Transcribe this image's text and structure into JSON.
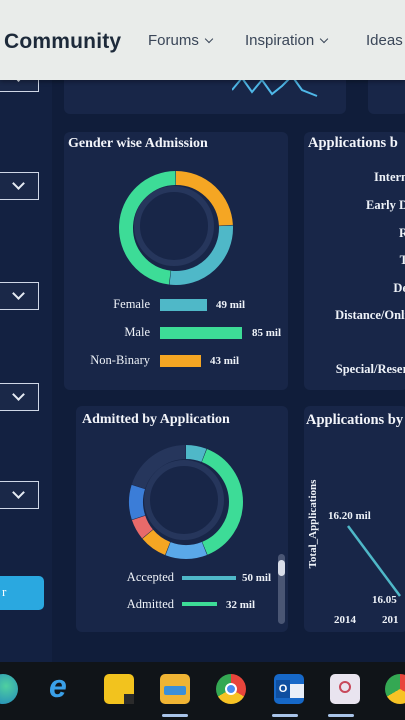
{
  "nav": {
    "brand": "Community",
    "items": [
      {
        "label": "Forums"
      },
      {
        "label": "Inspiration"
      },
      {
        "label": "Ideas"
      }
    ]
  },
  "panels": {
    "gender": {
      "title": "Gender wise Admission",
      "colors": [
        "#f5a623",
        "#4fb8c8",
        "#3ddc97"
      ],
      "donut_values": [
        43,
        49,
        85
      ],
      "bars": [
        {
          "label": "Female",
          "value": 49,
          "value_label": "49 mil",
          "color": "#4fb8c8"
        },
        {
          "label": "Male",
          "value": 85,
          "value_label": "85 mil",
          "color": "#3ddc97"
        },
        {
          "label": "Non-Binary",
          "value": 43,
          "value_label": "43 mil",
          "color": "#f5a623"
        }
      ]
    },
    "applications_by_type": {
      "title": "Applications b",
      "rows": [
        "Intern",
        "Early D",
        "R",
        "T",
        "De",
        "Distance/Onli",
        "Special/Reser"
      ]
    },
    "admitted": {
      "title": "Admitted by Application",
      "bars": [
        {
          "label": "Accepted",
          "value": 50,
          "value_label": "50 mil",
          "color": "#4fb8c8"
        },
        {
          "label": "Admitted",
          "value": 32,
          "value_label": "32 mil",
          "color": "#3ddc97"
        }
      ]
    },
    "applications_by_year": {
      "title": "Applications by",
      "ylabel": "Total_Applications",
      "point_labels": [
        "16.20 mil",
        "16.05"
      ],
      "years": [
        "2014",
        "201"
      ]
    },
    "left_button": "r"
  },
  "taskbar": {
    "icons": [
      "edge-icon",
      "internet-explorer-icon",
      "sticky-notes-icon",
      "file-explorer-icon",
      "chrome-icon",
      "outlook-icon",
      "teams-icon",
      "chrome-icon-2"
    ]
  }
}
